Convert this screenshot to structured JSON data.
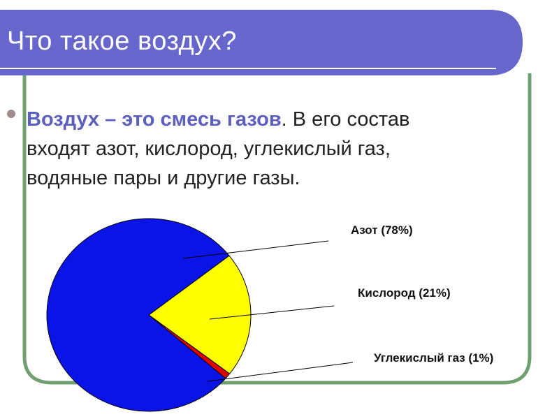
{
  "slide": {
    "title": "Что такое воздух?",
    "body_emphasis": "Воздух – это смесь газов",
    "body_rest": ". В его состав входят азот, кислород, углекислый газ, водяные пары и другие газы.",
    "colors": {
      "title_bar": "#6666cc",
      "frame": "#6fa06f",
      "emphasis": "#5b5fc0"
    }
  },
  "chart_data": {
    "type": "pie",
    "categories": [
      "Азот (78%)",
      "Кислород (21%)",
      "Углекислый газ (1%)"
    ],
    "values": [
      78,
      21,
      1
    ],
    "colors": [
      "#0a14e6",
      "#ffff00",
      "#e00000"
    ],
    "title": "",
    "legend": "right"
  }
}
